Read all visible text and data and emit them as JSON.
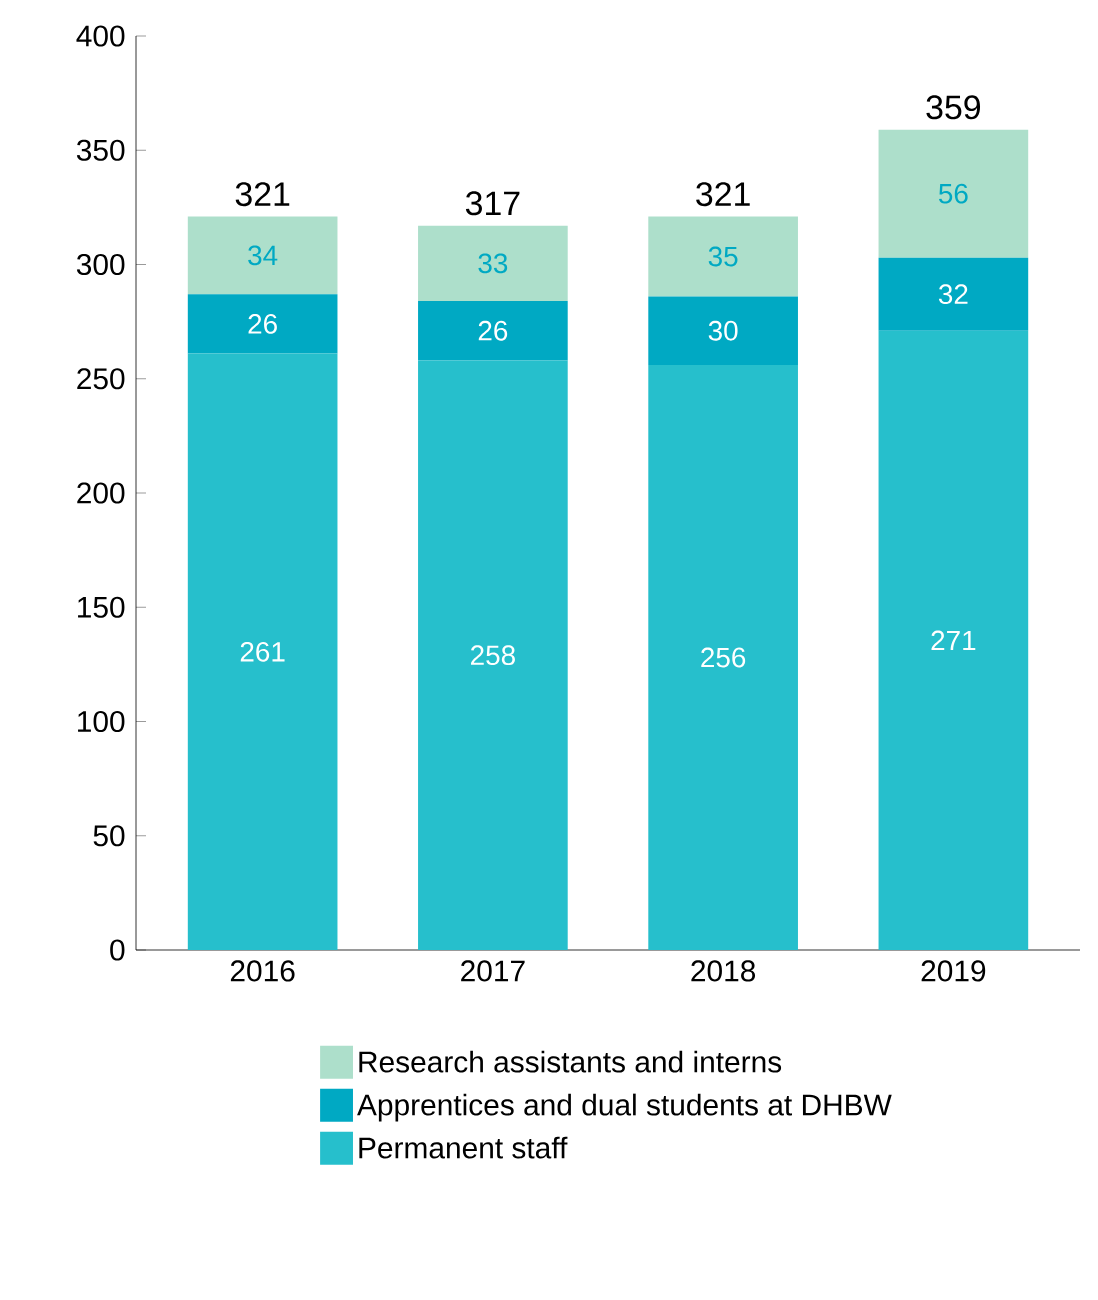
{
  "chart_data": {
    "type": "bar",
    "stacked": true,
    "categories": [
      "2016",
      "2017",
      "2018",
      "2019"
    ],
    "series": [
      {
        "name": "Permanent staff",
        "color": "#26bfcc",
        "values": [
          261,
          258,
          256,
          271
        ]
      },
      {
        "name": "Apprentices and dual students at DHBW",
        "color": "#00a9c3",
        "values": [
          26,
          26,
          30,
          32
        ]
      },
      {
        "name": "Research assistants and interns",
        "color": "#addfcb",
        "values": [
          34,
          33,
          35,
          56
        ]
      }
    ],
    "totals": [
      "321",
      "317",
      "321",
      "359"
    ],
    "data_labels": true,
    "ylim": [
      0,
      400
    ],
    "yticks": [
      0,
      50,
      100,
      150,
      200,
      250,
      300,
      350,
      400
    ],
    "grid": false,
    "legend": "bottom"
  }
}
